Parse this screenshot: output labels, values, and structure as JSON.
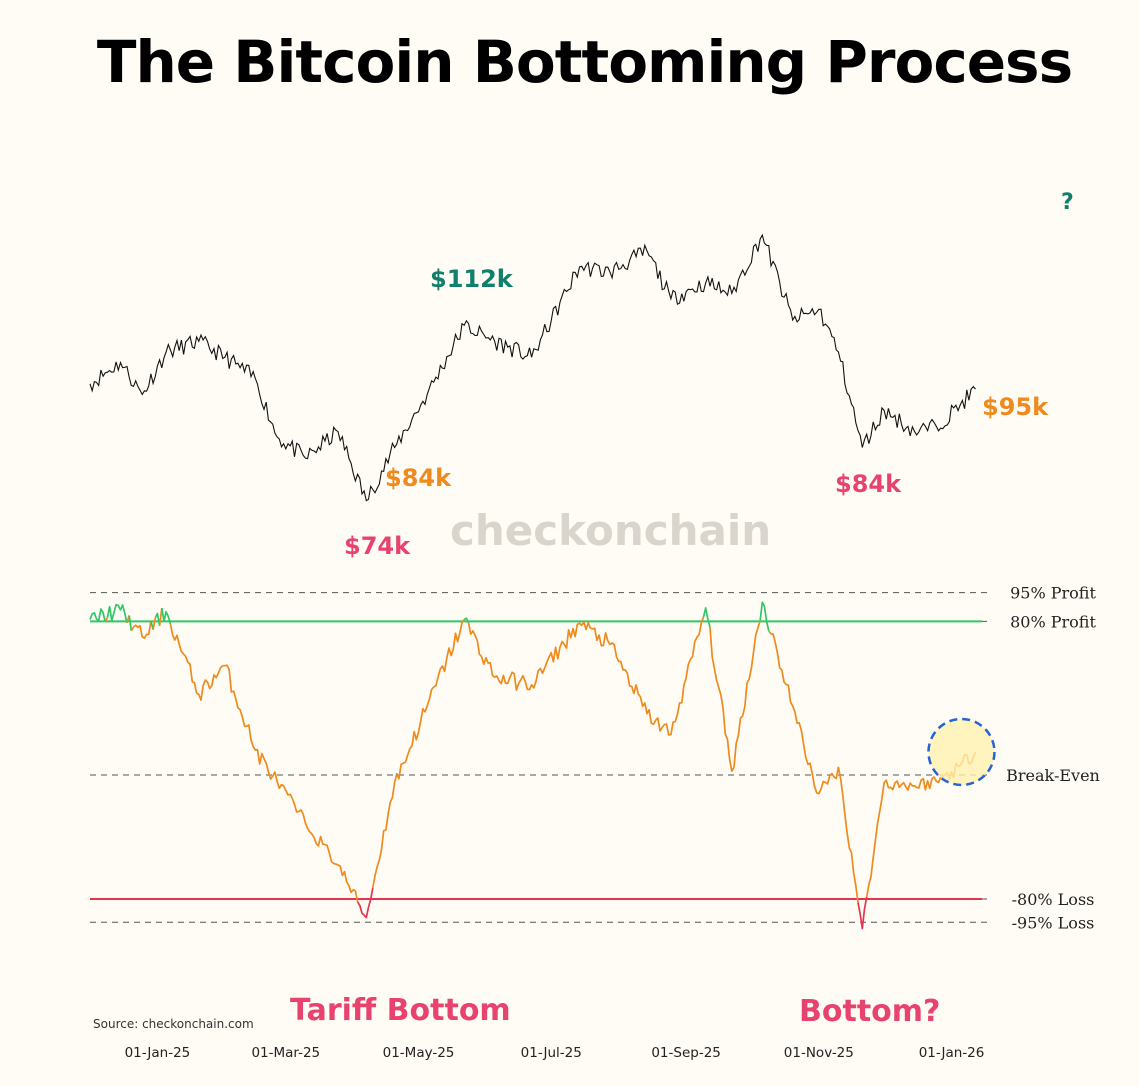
{
  "colors": {
    "background": "#fffcf6",
    "price": "#111111",
    "profit": "#2fc766",
    "neutral": "#ef8a1c",
    "loss": "#e8334f",
    "green_annotation": "#11806a",
    "orange_annotation": "#ef8a1c",
    "red_annotation": "#e8436f",
    "highlight": "#fff0b0",
    "highlight_ring": "#2563d6"
  },
  "chart_data": {
    "type": "line",
    "title": "The Bitcoin Bottoming Process",
    "x_tick_labels": [
      "01-Jan-25",
      "01-Mar-25",
      "01-May-25",
      "01-Jul-25",
      "01-Sep-25",
      "01-Nov-25",
      "01-Jan-26"
    ],
    "x_range": [
      "2024-12-01",
      "2026-01-15"
    ],
    "x": [
      "2024-12-01",
      "2024-12-15",
      "2024-12-25",
      "2025-01-05",
      "2025-01-20",
      "2025-02-01",
      "2025-02-15",
      "2025-02-25",
      "2025-03-10",
      "2025-03-25",
      "2025-04-07",
      "2025-04-20",
      "2025-05-05",
      "2025-05-22",
      "2025-06-05",
      "2025-06-22",
      "2025-07-14",
      "2025-07-28",
      "2025-08-14",
      "2025-08-25",
      "2025-09-10",
      "2025-09-22",
      "2025-10-06",
      "2025-10-20",
      "2025-11-01",
      "2025-11-10",
      "2025-11-21",
      "2025-12-01",
      "2025-12-15",
      "2025-12-25",
      "2026-01-05",
      "2026-01-12"
    ],
    "series": [
      {
        "values": [
          96,
          100,
          94,
          102,
          104,
          101,
          97,
          86,
          82,
          87,
          74,
          84,
          94,
          107,
          104,
          101,
          118,
          117,
          121,
          112,
          115,
          113,
          124,
          108,
          110,
          102,
          84,
          91,
          87,
          88,
          92,
          95
        ]
      },
      {
        "values": [
          0.81,
          0.86,
          0.72,
          0.85,
          0.42,
          0.57,
          0.13,
          -0.04,
          -0.31,
          -0.58,
          -0.92,
          -0.05,
          0.36,
          0.81,
          0.51,
          0.47,
          0.79,
          0.68,
          0.32,
          0.21,
          0.87,
          0.02,
          0.9,
          0.36,
          -0.12,
          0.04,
          -0.99,
          -0.05,
          -0.07,
          -0.04,
          0.05,
          0.12
        ]
      }
    ],
    "levels": [
      {
        "label": "95% Profit",
        "value": 0.95
      },
      {
        "label": "80% Profit",
        "value": 0.8
      },
      {
        "label": "Break-Even",
        "value": 0.0
      },
      {
        "label": "-80% Loss",
        "value": -0.8
      },
      {
        "label": "-95% Loss",
        "value": -0.95
      }
    ],
    "annotations": [
      {
        "text": "$112k",
        "color": "green"
      },
      {
        "text": "?",
        "color": "green"
      },
      {
        "text": "$95k",
        "color": "orange"
      },
      {
        "text": "$84k",
        "color": "orange"
      },
      {
        "text": "$84k",
        "color": "red"
      },
      {
        "text": "$74k",
        "color": "red"
      },
      {
        "text": "Tariff Bottom",
        "color": "red"
      },
      {
        "text": "Bottom?",
        "color": "red"
      }
    ],
    "watermark": "checkonchain",
    "source": "Source:  checkonchain.com"
  }
}
